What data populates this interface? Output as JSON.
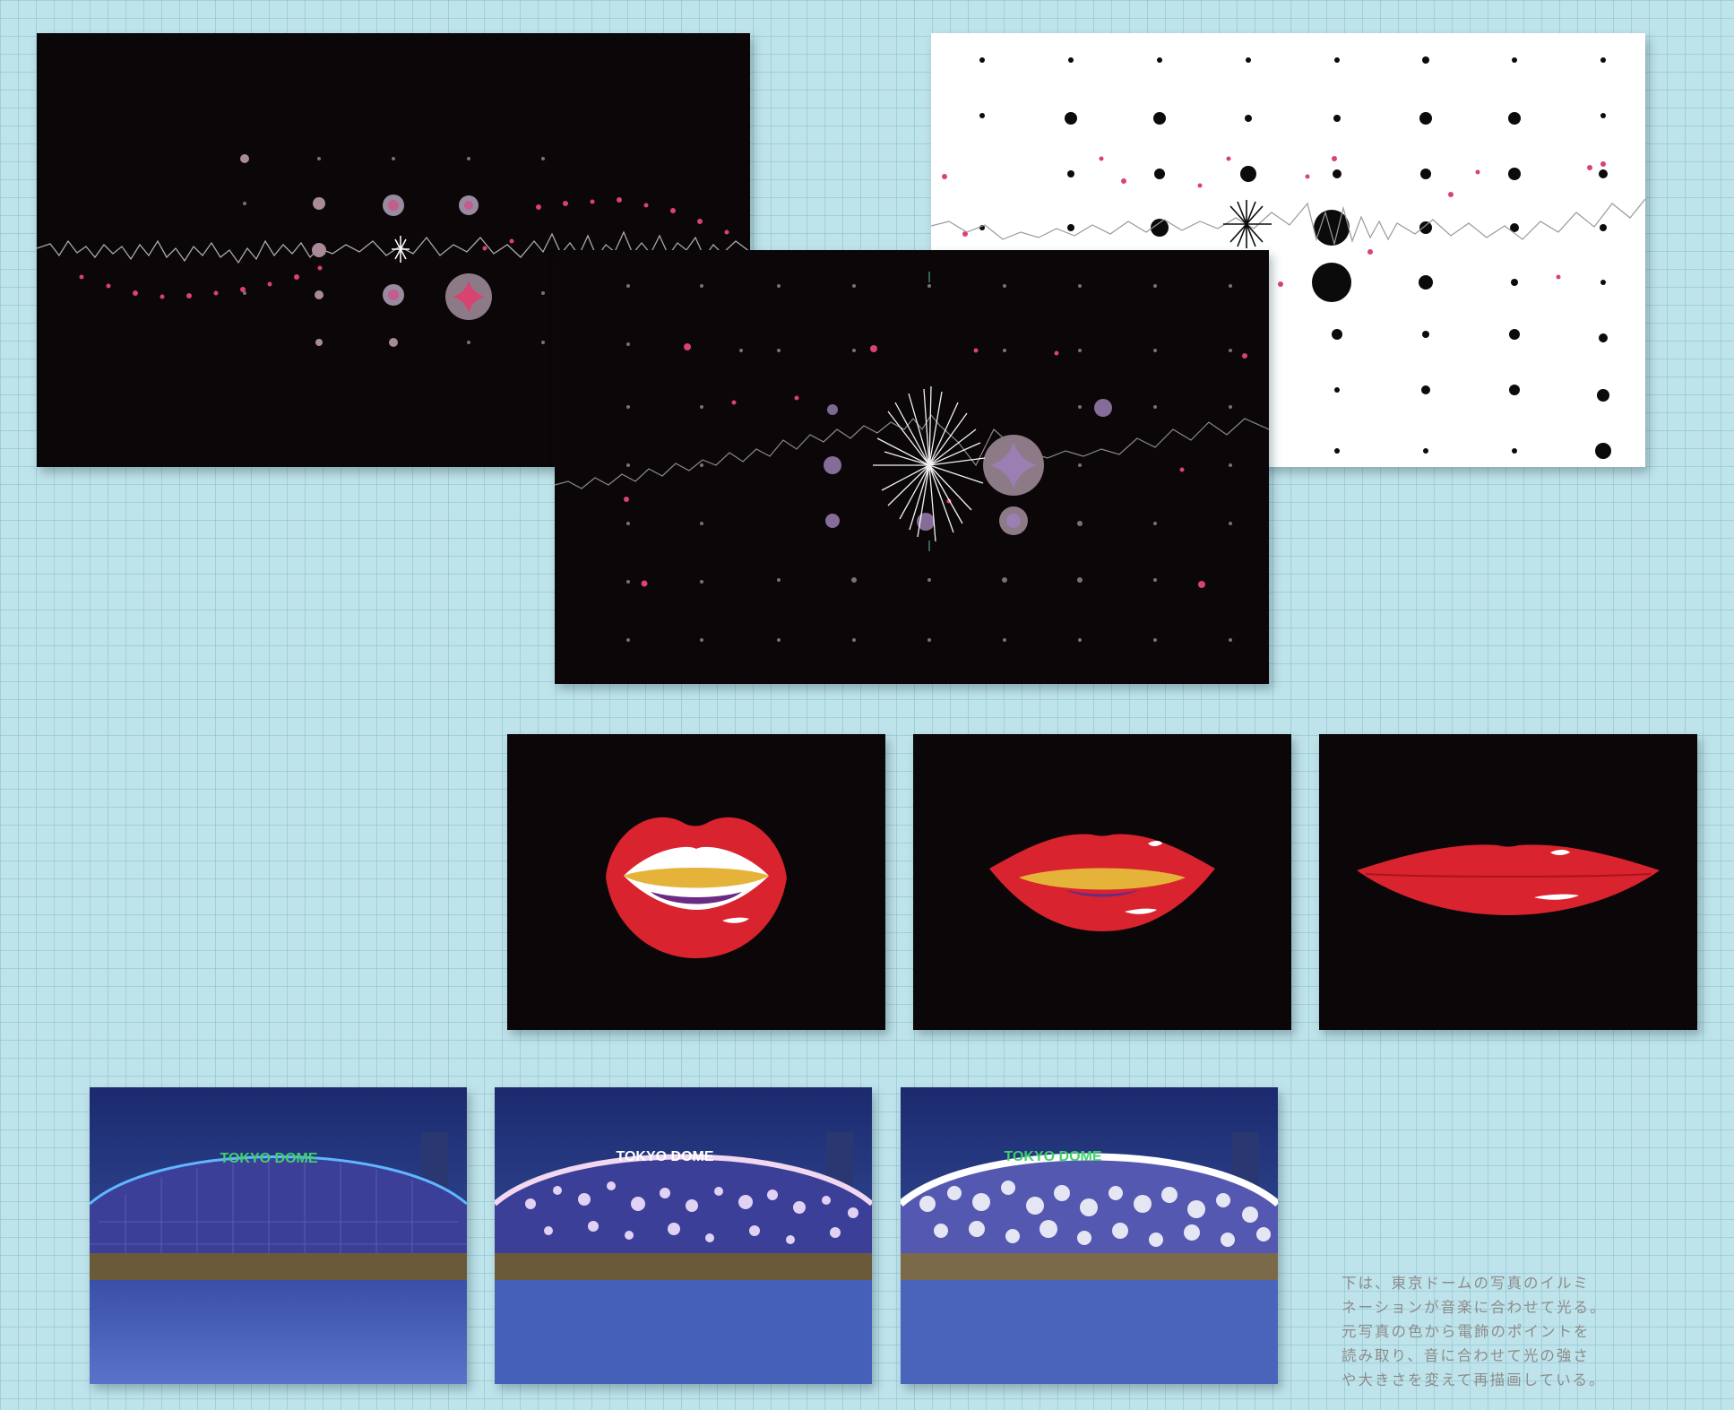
{
  "caption": {
    "lines": [
      "下は、東京ドームの写真のイルミ",
      "ネーションが音楽に合わせて光る。",
      "元写真の色から電飾のポイントを",
      "読み取り、音に合わせて光の強さ",
      "や大きさを変えて再描画している。"
    ]
  },
  "dome_sign": "TOKYO DOME",
  "colors": {
    "background": "#bfe3ea",
    "grid": "#78b9c8",
    "canvas_dark": "#0b0607",
    "lip_red": "#d9232e",
    "teeth_yellow": "#e6b33a",
    "tongue_purple": "#6b2a84",
    "pink_dot": "#d8436f",
    "purple_dot": "#9b7fb3",
    "sign_green": "#3fd06b",
    "sky_blue": "#2b3d8c"
  }
}
